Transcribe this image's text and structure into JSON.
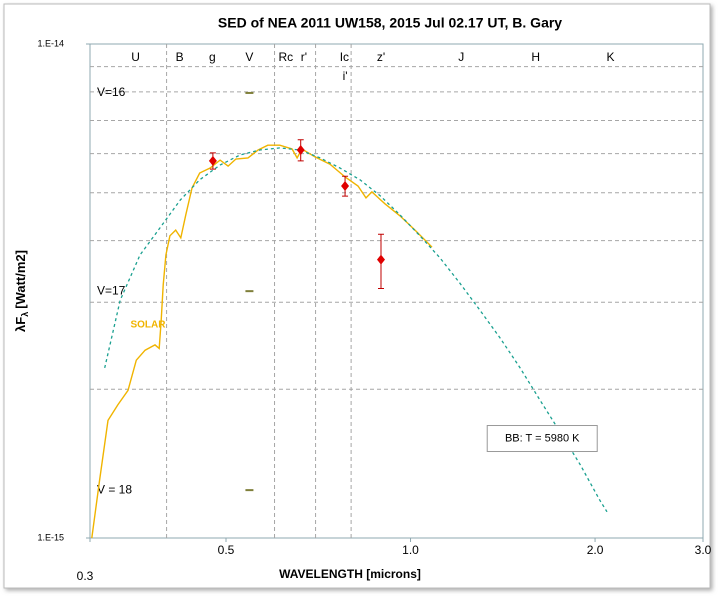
{
  "chart_data": {
    "type": "scatter",
    "title": "SED of NEA 2011 UW158, 2015 Jul 02.17 UT, B. Gary",
    "xlabel": "WAVELENGTH [microns]",
    "ylabel": {
      "main": "λF",
      "sub": "λ",
      "unit": "[Watt/m2]"
    },
    "xlog": true,
    "ylog": true,
    "grid": true,
    "xlim": [
      0.3,
      3.0
    ],
    "ylim": [
      1e-15,
      1e-14
    ],
    "xticks": [
      0.3,
      0.5,
      {
        "value": 1,
        "label": "1.0"
      },
      {
        "value": 2,
        "label": "2.0"
      },
      {
        "value": 3,
        "label": "3.0"
      }
    ],
    "yticks": [
      {
        "value": 1e-15,
        "label": "1.E-15"
      },
      {
        "value": 1e-14,
        "label": "1.E-14"
      }
    ],
    "xminor": [
      0.4,
      0.6,
      0.7,
      0.8
    ],
    "yminor": [
      2e-15,
      3e-15,
      4e-15,
      5e-15,
      6e-15,
      7e-15,
      8e-15,
      9e-15
    ],
    "points": {
      "color": "#e00000",
      "errcolor": "#c00000",
      "x": [
        0.476,
        0.662,
        0.782,
        0.895
      ],
      "values": [
        5.8e-15,
        6.1e-15,
        5.16e-15,
        3.66e-15
      ],
      "errors": [
        2.2e-16,
        3e-16,
        2.4e-16,
        4.6e-16
      ]
    },
    "lines": [
      {
        "color": "#f0b400",
        "dashed": false,
        "x": [
          0.302,
          0.311,
          0.321,
          0.333,
          0.346,
          0.357,
          0.369,
          0.383,
          0.389,
          0.392,
          0.395,
          0.399,
          0.405,
          0.414,
          0.422,
          0.43,
          0.44,
          0.453,
          0.471,
          0.489,
          0.504,
          0.519,
          0.543,
          0.564,
          0.585,
          0.612,
          0.641,
          0.653,
          0.665,
          0.698,
          0.739,
          0.782,
          0.821,
          0.846,
          0.865,
          0.908,
          0.961,
          1.017,
          1.084
        ],
        "values": [
          1e-15,
          1.31e-15,
          1.73e-15,
          1.86e-15,
          1.99e-15,
          2.29e-15,
          2.4e-15,
          2.46e-15,
          2.42e-15,
          2.76e-15,
          3.25e-15,
          3.74e-15,
          4.09e-15,
          4.2e-15,
          4.05e-15,
          4.51e-15,
          5.11e-15,
          5.48e-15,
          5.61e-15,
          5.82e-15,
          5.66e-15,
          5.85e-15,
          5.88e-15,
          6.1e-15,
          6.24e-15,
          6.24e-15,
          6.13e-15,
          5.88e-15,
          6.13e-15,
          5.91e-15,
          5.71e-15,
          5.38e-15,
          5.16e-15,
          4.88e-15,
          5.02e-15,
          4.75e-15,
          4.49e-15,
          4.2e-15,
          3.88e-15
        ]
      },
      {
        "color": "#1aa090",
        "dashed": true,
        "x": [
          0.317,
          0.336,
          0.362,
          0.39,
          0.421,
          0.453,
          0.489,
          0.527,
          0.568,
          0.612,
          0.66,
          0.712,
          0.767,
          0.827,
          0.892,
          0.961,
          1.036,
          1.117,
          1.204,
          1.298,
          1.4,
          1.509,
          1.627,
          1.753,
          1.89,
          2.038,
          2.092
        ],
        "values": [
          2.21e-15,
          3.03e-15,
          3.74e-15,
          4.24e-15,
          4.83e-15,
          5.31e-15,
          5.69e-15,
          5.96e-15,
          6.1e-15,
          6.16e-15,
          6.1e-15,
          5.88e-15,
          5.61e-15,
          5.31e-15,
          4.93e-15,
          4.51e-15,
          4.09e-15,
          3.69e-15,
          3.28e-15,
          2.89e-15,
          2.54e-15,
          2.21e-15,
          1.9e-15,
          1.64e-15,
          1.41e-15,
          1.19e-15,
          1.13e-15
        ]
      }
    ],
    "band_labels": [
      {
        "label": "U",
        "x": 0.356
      },
      {
        "label": "B",
        "x": 0.42
      },
      {
        "label": "g",
        "x": 0.475
      },
      {
        "label": "V",
        "x": 0.546
      },
      {
        "label": "Rc",
        "x": 0.626
      },
      {
        "label": "r'",
        "x": 0.67
      },
      {
        "label": "Ic",
        "x": 0.78
      },
      {
        "label": "z'",
        "x": 0.895
      },
      {
        "label": "J",
        "x": 1.21
      },
      {
        "label": "H",
        "x": 1.6
      },
      {
        "label": "K",
        "x": 2.12
      }
    ],
    "band_labels_2": [
      {
        "label": "i'",
        "x": 0.782
      }
    ],
    "magnitude_markers": [
      {
        "label": "V=16",
        "x": 0.546,
        "y": 7.96e-15
      },
      {
        "label": "V=17",
        "x": 0.546,
        "y": 3.16e-15
      },
      {
        "label": "V = 18",
        "x": 0.546,
        "y": 1.25e-15
      }
    ],
    "annotations": [
      {
        "text": "SOLAR",
        "x": 0.373,
        "y": 2.7e-15,
        "color": "#f0b400"
      },
      {
        "text": "BB:  T = 5980 K",
        "x": 1.64,
        "y": 1.59e-15,
        "boxed": true
      }
    ]
  }
}
